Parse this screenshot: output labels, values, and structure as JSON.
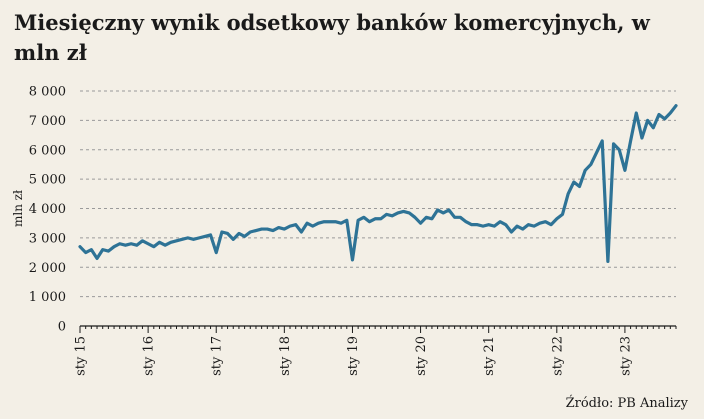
{
  "title": "Miesięczny wynik odsetkowy banków komercyjnych, w mln zł",
  "source": "Źródło: PB Analizy",
  "colors": {
    "line": "#2e7396",
    "grid": "#9a9a9a",
    "axis": "#1a1a1a",
    "background": "#f3efe6"
  },
  "chart_data": {
    "type": "line",
    "ylabel": "mln zł",
    "ylim": [
      0,
      8000
    ],
    "yticks": [
      0,
      1000,
      2000,
      3000,
      4000,
      5000,
      6000,
      7000,
      8000
    ],
    "ytick_labels": [
      "0",
      "1 000",
      "2 000",
      "3 000",
      "4 000",
      "5 000",
      "6 000",
      "7 000",
      "8 000"
    ],
    "xtick_labels": [
      "sty 15",
      "sty 16",
      "sty 17",
      "sty 18",
      "sty 19",
      "sty 20",
      "sty 21",
      "sty 22",
      "sty 23"
    ],
    "grid": "horizontal dashed",
    "series": [
      {
        "start": "2015-01",
        "frequency": "monthly",
        "values": [
          2700,
          2500,
          2600,
          2300,
          2600,
          2550,
          2700,
          2800,
          2750,
          2800,
          2750,
          2900,
          2800,
          2700,
          2850,
          2750,
          2850,
          2900,
          2950,
          3000,
          2950,
          3000,
          3050,
          3100,
          2500,
          3200,
          3150,
          2950,
          3150,
          3050,
          3200,
          3250,
          3300,
          3300,
          3250,
          3350,
          3300,
          3400,
          3450,
          3200,
          3500,
          3400,
          3500,
          3550,
          3550,
          3550,
          3500,
          3600,
          2250,
          3600,
          3700,
          3550,
          3650,
          3650,
          3800,
          3750,
          3850,
          3900,
          3850,
          3700,
          3500,
          3700,
          3650,
          3950,
          3850,
          3950,
          3700,
          3700,
          3550,
          3450,
          3450,
          3400,
          3450,
          3400,
          3550,
          3450,
          3200,
          3400,
          3300,
          3450,
          3400,
          3500,
          3550,
          3450,
          3650,
          3800,
          4500,
          4900,
          4750,
          5300,
          5500,
          5900,
          6300,
          2200,
          6200,
          6000,
          5300,
          6300,
          7250,
          6400,
          7000,
          6750,
          7200,
          7050,
          7250,
          7500
        ]
      }
    ]
  }
}
